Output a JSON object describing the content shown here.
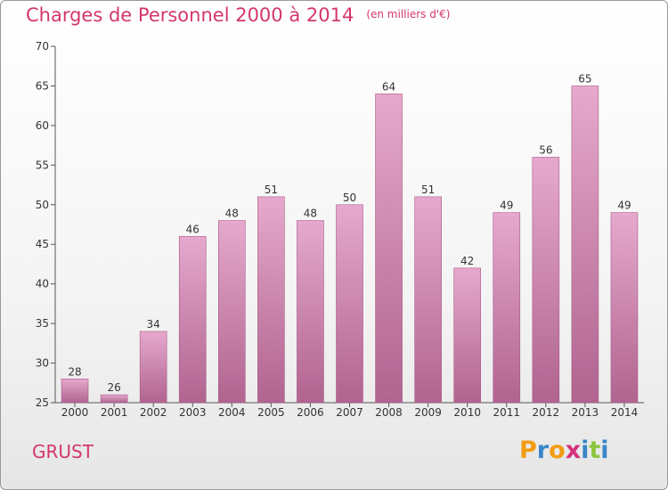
{
  "title": "Charges de Personnel 2000 à 2014",
  "unit": "(en milliers d'€)",
  "commune": "GRUST",
  "logo": {
    "letters": [
      "P",
      "r",
      "o",
      "x",
      "i",
      "t",
      "i"
    ],
    "colors": [
      "#f39c12",
      "#3a86c8",
      "#f39c12",
      "#d62f7c",
      "#3a86c8",
      "#8cc63f",
      "#3a86c8"
    ]
  },
  "colors": {
    "bar_top": "#e6a9cd",
    "bar_bottom": "#b0648f",
    "title": "#d4366e"
  },
  "chart_data": {
    "type": "bar",
    "categories": [
      "2000",
      "2001",
      "2002",
      "2003",
      "2004",
      "2005",
      "2006",
      "2007",
      "2008",
      "2009",
      "2010",
      "2011",
      "2012",
      "2013",
      "2014"
    ],
    "values": [
      28,
      26,
      34,
      46,
      48,
      51,
      48,
      50,
      64,
      51,
      42,
      49,
      56,
      65,
      49
    ],
    "title": "Charges de Personnel 2000 à 2014",
    "xlabel": "",
    "ylabel": "",
    "ylim": [
      25,
      70
    ],
    "yticks": [
      25,
      30,
      35,
      40,
      45,
      50,
      55,
      60,
      65,
      70
    ],
    "grid": false,
    "legend": "none"
  }
}
